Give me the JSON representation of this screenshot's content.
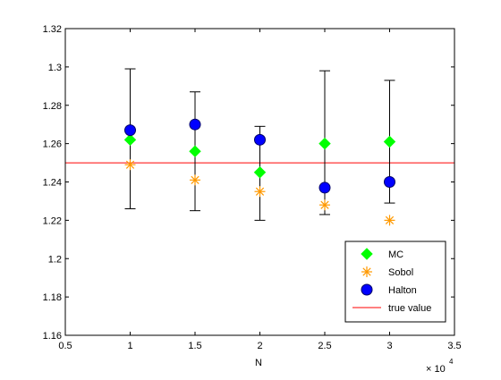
{
  "chart_data": {
    "type": "scatter",
    "title": "",
    "xlabel": "N",
    "ylabel": "",
    "x_multiplier": "× 10",
    "x_multiplier_exponent": "4",
    "xlim": [
      0.5,
      3.5
    ],
    "ylim": [
      1.16,
      1.32
    ],
    "x_ticks": [
      0.5,
      1,
      1.5,
      2,
      2.5,
      3,
      3.5
    ],
    "x_tick_labels": [
      "0.5",
      "1",
      "1.5",
      "2",
      "2.5",
      "3",
      "3.5"
    ],
    "y_ticks": [
      1.16,
      1.18,
      1.2,
      1.22,
      1.24,
      1.26,
      1.28,
      1.3,
      1.32
    ],
    "y_tick_labels": [
      "1.16",
      "1.18",
      "1.2",
      "1.22",
      "1.24",
      "1.26",
      "1.28",
      "1.3",
      "1.32"
    ],
    "grid": false,
    "legend_position": "bottom-right",
    "series": [
      {
        "name": "MC",
        "marker": "diamond",
        "color": "#00ff00",
        "x": [
          1,
          1.5,
          2,
          2.5,
          3
        ],
        "y": [
          1.262,
          1.256,
          1.245,
          1.26,
          1.261
        ]
      },
      {
        "name": "Sobol",
        "marker": "asterisk",
        "color": "#ff9900",
        "x": [
          1,
          1.5,
          2,
          2.5,
          3
        ],
        "y": [
          1.249,
          1.241,
          1.235,
          1.228,
          1.22
        ]
      },
      {
        "name": "Halton",
        "marker": "circle",
        "color": "#0000ff",
        "x": [
          1,
          1.5,
          2,
          2.5,
          3
        ],
        "y": [
          1.267,
          1.27,
          1.262,
          1.237,
          1.24
        ]
      }
    ],
    "error_bars": {
      "color": "#000000",
      "x": [
        1,
        1.5,
        2,
        2.5,
        3
      ],
      "lower": [
        1.226,
        1.225,
        1.22,
        1.223,
        1.229
      ],
      "upper": [
        1.299,
        1.287,
        1.269,
        1.298,
        1.293
      ]
    },
    "reference_line": {
      "name": "true value",
      "y": 1.25,
      "color": "#ff0000"
    }
  }
}
